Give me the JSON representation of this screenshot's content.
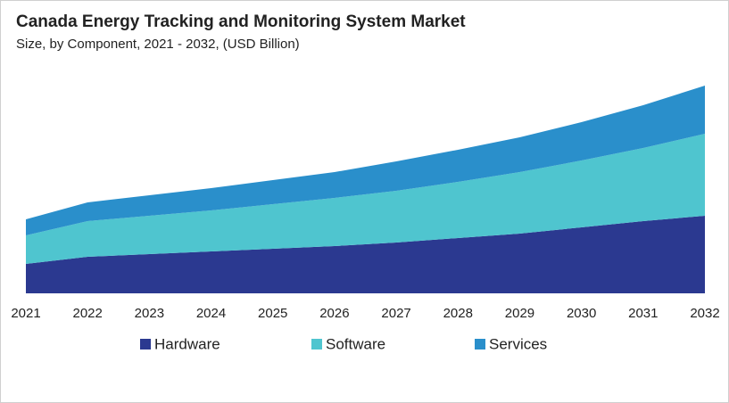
{
  "chart_data": {
    "type": "stacked-area",
    "title": "Canada Energy Tracking and Monitoring System Market",
    "subtitle": "Size, by Component, 2021 - 2032, (USD Billion)",
    "categories": [
      "2021",
      "2022",
      "2023",
      "2024",
      "2025",
      "2026",
      "2027",
      "2028",
      "2029",
      "2030",
      "2031",
      "2032"
    ],
    "series": [
      {
        "name": "Hardware",
        "color": "#2b3990",
        "values": [
          0.33,
          0.41,
          0.44,
          0.47,
          0.5,
          0.53,
          0.57,
          0.62,
          0.67,
          0.74,
          0.81,
          0.87
        ]
      },
      {
        "name": "Software",
        "color": "#4fc5cf",
        "values": [
          0.32,
          0.4,
          0.43,
          0.46,
          0.5,
          0.54,
          0.58,
          0.63,
          0.69,
          0.75,
          0.82,
          0.92
        ]
      },
      {
        "name": "Services",
        "color": "#2a8fcb",
        "values": [
          0.18,
          0.21,
          0.23,
          0.25,
          0.27,
          0.29,
          0.33,
          0.36,
          0.39,
          0.43,
          0.48,
          0.54
        ]
      }
    ],
    "ylim": [
      0,
      2.33
    ]
  }
}
